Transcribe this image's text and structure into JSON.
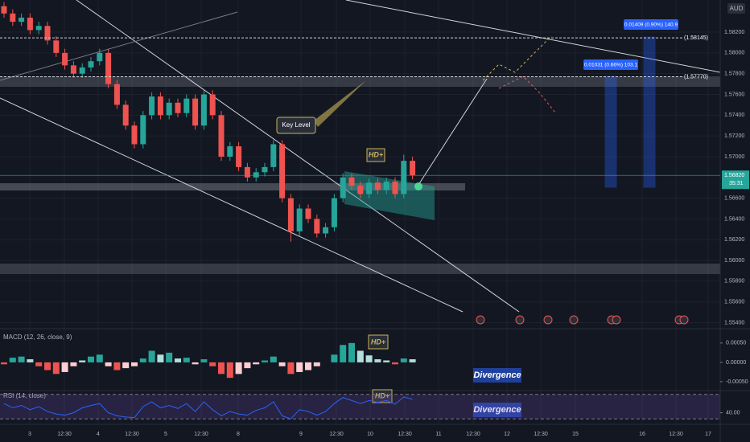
{
  "chart_data": {
    "type": "candlestick",
    "currency": "AUD",
    "open": [
      1.5845,
      1.5838,
      1.583,
      1.5834,
      1.5822,
      1.5826,
      1.5812,
      1.58,
      1.5788,
      1.578,
      1.5786,
      1.5792,
      1.58,
      1.577,
      1.575,
      1.573,
      1.5712,
      1.574,
      1.5758,
      1.574,
      1.5752,
      1.5742,
      1.5756,
      1.573,
      1.576,
      1.574,
      1.57,
      1.571,
      1.569,
      1.568,
      1.5685,
      1.569,
      1.5712,
      1.566,
      1.5628,
      1.565,
      1.564,
      1.5626,
      1.5632,
      1.566,
      1.568,
      1.5672,
      1.5664,
      1.5675,
      1.5668,
      1.5676,
      1.5664,
      1.5696
    ],
    "high": [
      1.5849,
      1.5842,
      1.5838,
      1.5838,
      1.583,
      1.583,
      1.5816,
      1.5804,
      1.5792,
      1.579,
      1.5796,
      1.5804,
      1.5804,
      1.5774,
      1.5754,
      1.5734,
      1.5744,
      1.5762,
      1.5762,
      1.5756,
      1.5756,
      1.576,
      1.576,
      1.5764,
      1.5764,
      1.5744,
      1.5714,
      1.5714,
      1.5694,
      1.5689,
      1.5694,
      1.5716,
      1.5716,
      1.5664,
      1.5654,
      1.5654,
      1.5644,
      1.5636,
      1.5664,
      1.5684,
      1.5684,
      1.5676,
      1.5679,
      1.5679,
      1.568,
      1.568,
      1.5702,
      1.57
    ],
    "low": [
      1.5834,
      1.5826,
      1.5826,
      1.5818,
      1.5818,
      1.5808,
      1.5796,
      1.5784,
      1.5776,
      1.5776,
      1.5782,
      1.5788,
      1.5766,
      1.5746,
      1.5726,
      1.5708,
      1.5708,
      1.5736,
      1.5736,
      1.5736,
      1.5738,
      1.5738,
      1.5726,
      1.5726,
      1.5736,
      1.5696,
      1.5696,
      1.5686,
      1.5676,
      1.5676,
      1.5681,
      1.5686,
      1.5656,
      1.5618,
      1.5624,
      1.5636,
      1.5622,
      1.5622,
      1.5628,
      1.5656,
      1.5668,
      1.566,
      1.566,
      1.5664,
      1.5664,
      1.566,
      1.566,
      1.5678
    ],
    "close": [
      1.5838,
      1.583,
      1.5834,
      1.5822,
      1.5826,
      1.5812,
      1.58,
      1.5788,
      1.578,
      1.5786,
      1.5792,
      1.58,
      1.577,
      1.575,
      1.573,
      1.5712,
      1.574,
      1.5758,
      1.574,
      1.5752,
      1.5742,
      1.5756,
      1.573,
      1.576,
      1.574,
      1.57,
      1.571,
      1.569,
      1.568,
      1.5685,
      1.569,
      1.5712,
      1.566,
      1.5628,
      1.565,
      1.564,
      1.5626,
      1.5632,
      1.566,
      1.568,
      1.5672,
      1.5664,
      1.5675,
      1.5668,
      1.5676,
      1.5664,
      1.5696,
      1.5682
    ],
    "up_color": "#26a69a",
    "down_color": "#ef5350",
    "ylim": [
      1.5535,
      1.5851
    ],
    "yticks": [
      {
        "value": 1.582,
        "label": "1.58200"
      },
      {
        "value": 1.58,
        "label": "1.58000"
      },
      {
        "value": 1.578,
        "label": "1.57800"
      },
      {
        "value": 1.576,
        "label": "1.57600"
      },
      {
        "value": 1.574,
        "label": "1.57400"
      },
      {
        "value": 1.572,
        "label": "1.57200"
      },
      {
        "value": 1.57,
        "label": "1.57000"
      },
      {
        "value": 1.566,
        "label": "1.56600"
      },
      {
        "value": 1.564,
        "label": "1.56400"
      },
      {
        "value": 1.562,
        "label": "1.56200"
      },
      {
        "value": 1.56,
        "label": "1.56000"
      },
      {
        "value": 1.558,
        "label": "1.55800"
      },
      {
        "value": 1.556,
        "label": "1.55600"
      },
      {
        "value": 1.554,
        "label": "1.55400"
      }
    ],
    "levels": [
      {
        "value": 1.58145,
        "label": "(1.58145)"
      },
      {
        "value": 1.5777,
        "label": "(1.57770)"
      }
    ],
    "current_price": {
      "value": 1.5682,
      "label": "1.56820"
    },
    "countdown": "35:31",
    "time_labels": [
      "3",
      "12:30",
      "4",
      "12:30",
      "5",
      "12:30",
      "8",
      "9",
      "12:30",
      "10",
      "12:30",
      "11",
      "12:30",
      "12",
      "12:30",
      "15",
      "16",
      "12:30",
      "17"
    ],
    "annotations": {
      "key_level": "Key Level",
      "hd": "HD+",
      "divergence": "Divergence",
      "measure_1": "0.01409 (0.90%) 140.9",
      "measure_2": "0.01031 (0.66%) 103.1"
    },
    "macd": {
      "title": "MACD (12, 26, close, 9)",
      "values": [
        -5e-05,
        0.00012,
        0.00015,
        8e-05,
        -0.0001,
        -0.0002,
        -0.0003,
        -0.00025,
        -0.0001,
        5e-05,
        0.00015,
        0.0002,
        -0.0001,
        -0.0002,
        -0.00015,
        -0.0001,
        0.0001,
        0.0003,
        0.0002,
        0.00025,
        0.0001,
        0.00012,
        -5e-05,
        8e-05,
        -0.0001,
        -0.0003,
        -0.0004,
        -0.0003,
        -0.00015,
        -5e-05,
        5e-05,
        0.00015,
        -0.0001,
        -0.0003,
        -0.00025,
        -0.0002,
        -0.0001,
        0,
        0.0002,
        0.00045,
        0.0005,
        0.0003,
        0.00018,
        8e-05,
        5e-05,
        -5e-05,
        0.0001,
        8e-05
      ],
      "ylim": [
        -0.00075,
        0.00085
      ],
      "yticks": [
        {
          "value": 0.0005,
          "label": "0.00050"
        },
        {
          "value": 0,
          "label": "0.00000"
        },
        {
          "value": -0.0005,
          "label": "-0.00050"
        }
      ]
    },
    "rsi": {
      "title": "RSI (14, close)",
      "values": [
        55,
        48,
        52,
        45,
        50,
        42,
        38,
        36,
        40,
        48,
        52,
        55,
        40,
        35,
        33,
        32,
        50,
        58,
        48,
        52,
        47,
        55,
        42,
        58,
        45,
        35,
        42,
        38,
        36,
        44,
        48,
        58,
        35,
        30,
        45,
        42,
        36,
        42,
        55,
        65,
        60,
        55,
        60,
        57,
        60,
        54,
        66,
        62
      ],
      "color": "#2962ff",
      "ylim": [
        25,
        75
      ],
      "bands": [
        70,
        30
      ],
      "yticks": [
        {
          "value": 40,
          "label": "40.00"
        }
      ]
    }
  }
}
